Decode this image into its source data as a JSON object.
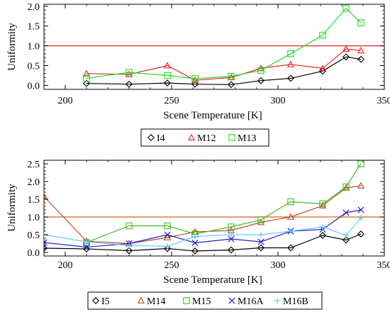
{
  "chart_data": [
    {
      "type": "line",
      "xlabel": "Scene Temperature [K]",
      "ylabel": "Uniformity",
      "xlim": [
        190,
        350
      ],
      "ylim": [
        -0.1,
        2.05
      ],
      "xticks": [
        200,
        250,
        300,
        350
      ],
      "yticks": [
        0.0,
        0.5,
        1.0,
        1.5,
        2.0
      ],
      "ytick_labels": [
        "0.0",
        "0.5",
        "1.0",
        "1.5",
        "2.0"
      ],
      "grid": false,
      "legend_position": "bottom",
      "reference_line": {
        "y": 1.0,
        "color": "#e8202a"
      },
      "series": [
        {
          "name": "I4",
          "color": "#000000",
          "marker": "diamond",
          "x": [
            210,
            230,
            248,
            261,
            278,
            292,
            306,
            321,
            332,
            339
          ],
          "y": [
            0.05,
            0.03,
            0.06,
            0.03,
            0.02,
            0.12,
            0.18,
            0.36,
            0.72,
            0.66
          ]
        },
        {
          "name": "M12",
          "color": "#e8202a",
          "marker": "triangle",
          "x": [
            210,
            230,
            248,
            261,
            278,
            292,
            306,
            321,
            332,
            339
          ],
          "y": [
            0.3,
            0.28,
            0.5,
            0.13,
            0.2,
            0.43,
            0.53,
            0.43,
            0.92,
            0.88
          ]
        },
        {
          "name": "M13",
          "color": "#22dd22",
          "marker": "square",
          "x": [
            210,
            230,
            248,
            261,
            278,
            292,
            306,
            321,
            332,
            339
          ],
          "y": [
            0.18,
            0.33,
            0.25,
            0.17,
            0.23,
            0.38,
            0.8,
            1.27,
            1.95,
            1.58
          ]
        }
      ]
    },
    {
      "type": "line",
      "xlabel": "Scene Temperature [K]",
      "ylabel": "Uniformity",
      "xlim": [
        190,
        350
      ],
      "ylim": [
        -0.1,
        2.6
      ],
      "xticks": [
        200,
        250,
        300,
        350
      ],
      "yticks": [
        0.0,
        0.5,
        1.0,
        1.5,
        2.0,
        2.5
      ],
      "ytick_labels": [
        "0.0",
        "0.5",
        "1.0",
        "1.5",
        "2.0",
        "2.5"
      ],
      "grid": false,
      "legend_position": "bottom",
      "reference_line": {
        "y": 1.0,
        "color": "#d9601a"
      },
      "series": [
        {
          "name": "I5",
          "color": "#000000",
          "marker": "diamond",
          "x": [
            190,
            210,
            230,
            248,
            261,
            278,
            292,
            306,
            321,
            332,
            339
          ],
          "y": [
            0.12,
            0.1,
            0.05,
            0.11,
            0.04,
            0.07,
            0.13,
            0.13,
            0.48,
            0.35,
            0.52
          ]
        },
        {
          "name": "M14",
          "color": "#b5502a",
          "marker": "triangle",
          "x": [
            190,
            210,
            230,
            248,
            261,
            278,
            292,
            306,
            321,
            332,
            339
          ],
          "y": [
            1.58,
            0.32,
            0.25,
            0.42,
            0.58,
            0.62,
            0.85,
            1.0,
            1.32,
            1.82,
            1.88
          ]
        },
        {
          "name": "M15",
          "color": "#44bb22",
          "marker": "square",
          "x": [
            210,
            230,
            248,
            261,
            278,
            292,
            306,
            321,
            332,
            339
          ],
          "y": [
            0.28,
            0.75,
            0.75,
            0.52,
            0.72,
            0.92,
            1.43,
            1.37,
            1.85,
            2.5
          ]
        },
        {
          "name": "M16A",
          "color": "#2222cc",
          "marker": "x",
          "x": [
            190,
            210,
            230,
            248,
            261,
            278,
            292,
            306,
            321,
            332,
            339
          ],
          "y": [
            0.28,
            0.15,
            0.25,
            0.5,
            0.27,
            0.38,
            0.3,
            0.6,
            0.65,
            1.12,
            1.2
          ]
        },
        {
          "name": "M16B",
          "color": "#66ccff",
          "marker": "plus",
          "x": [
            190,
            210,
            230,
            248,
            261,
            278,
            292,
            306,
            321,
            332,
            339
          ],
          "y": [
            0.5,
            0.3,
            0.2,
            0.17,
            0.45,
            0.5,
            0.5,
            0.6,
            0.72,
            0.48,
            0.97
          ]
        }
      ]
    }
  ]
}
